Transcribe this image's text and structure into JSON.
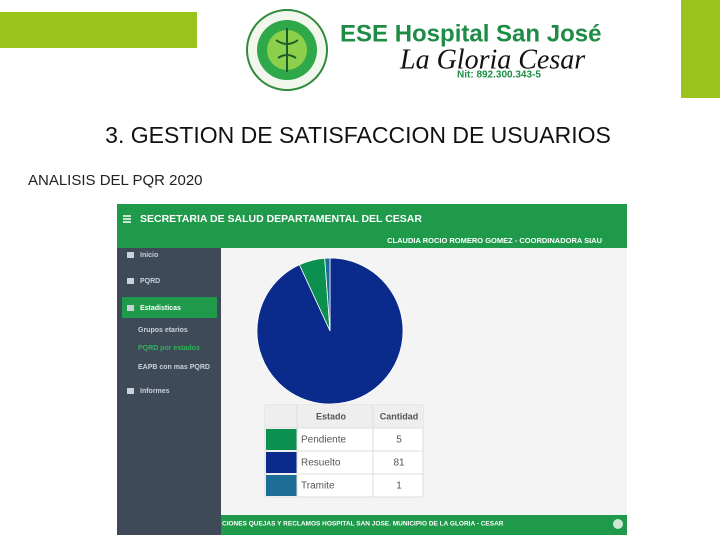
{
  "header": {
    "hospital": "ESE Hospital San José",
    "place": "La Gloria Cesar",
    "nit": "Nit: 892.300.343-5"
  },
  "title": "3. GESTION DE SATISFACCION DE USUARIOS",
  "subtitle": "ANALISIS DEL PQR 2020",
  "app": {
    "topbar": "SECRETARIA DE SALUD DEPARTAMENTAL DEL CESAR",
    "user": "CLAUDIA ROCIO ROMERO GOMEZ - COORDINADORA SIAU",
    "menu": [
      "Inicio",
      "PQRD",
      "Estadisticas",
      "Grupos etarios",
      "PQRD por estados",
      "EAPB con mas PQRD",
      "Informes"
    ],
    "table_headers": [
      "Estado",
      "Cantidad"
    ],
    "footer": "CIONES QUEJAS Y RECLAMOS HOSPITAL SAN JOSE. MUNICIPIO DE LA GLORIA - CESAR"
  },
  "chart_data": {
    "type": "pie",
    "categories": [
      "Pendiente",
      "Resuelto",
      "Tramite"
    ],
    "values": [
      5,
      81,
      1
    ],
    "colors": [
      "#0b9050",
      "#0a2a8c",
      "#1c6e96"
    ]
  }
}
